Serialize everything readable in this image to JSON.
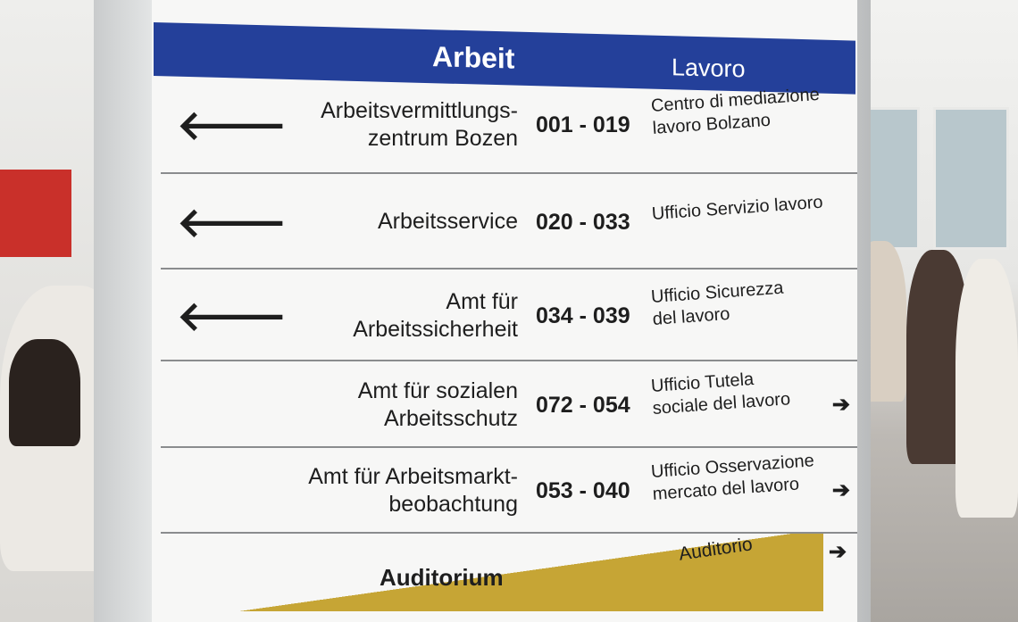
{
  "sign": {
    "header": {
      "de": "Arbeit",
      "it": "Lavoro"
    },
    "rows": [
      {
        "de": "Arbeitsvermittlungs-\nzentrum Bozen",
        "range": "001 - 019",
        "it": "Centro di mediazione\nlavoro Bolzano",
        "direction": "left"
      },
      {
        "de": "Arbeitsservice",
        "range": "020 - 033",
        "it": "Ufficio Servizio lavoro",
        "direction": "left"
      },
      {
        "de": "Amt für\nArbeitssicherheit",
        "range": "034 - 039",
        "it": "Ufficio Sicurezza\ndel lavoro",
        "direction": "left"
      },
      {
        "de": "Amt für sozialen\nArbeitsschutz",
        "range": "072 - 054",
        "it": "Ufficio Tutela\nsociale del lavoro",
        "direction": "right"
      },
      {
        "de": "Amt für Arbeitsmarkt-\nbeobachtung",
        "range": "053 - 040",
        "it": "Ufficio Osservazione\nmercato del lavoro",
        "direction": "right"
      }
    ],
    "auditorium": {
      "de": "Auditorium",
      "it": "Auditorio",
      "direction": "right"
    },
    "arrow_left": "🡐",
    "arrow_right": "➔",
    "colors": {
      "header": "#24409a",
      "band": "#c6a535"
    }
  }
}
